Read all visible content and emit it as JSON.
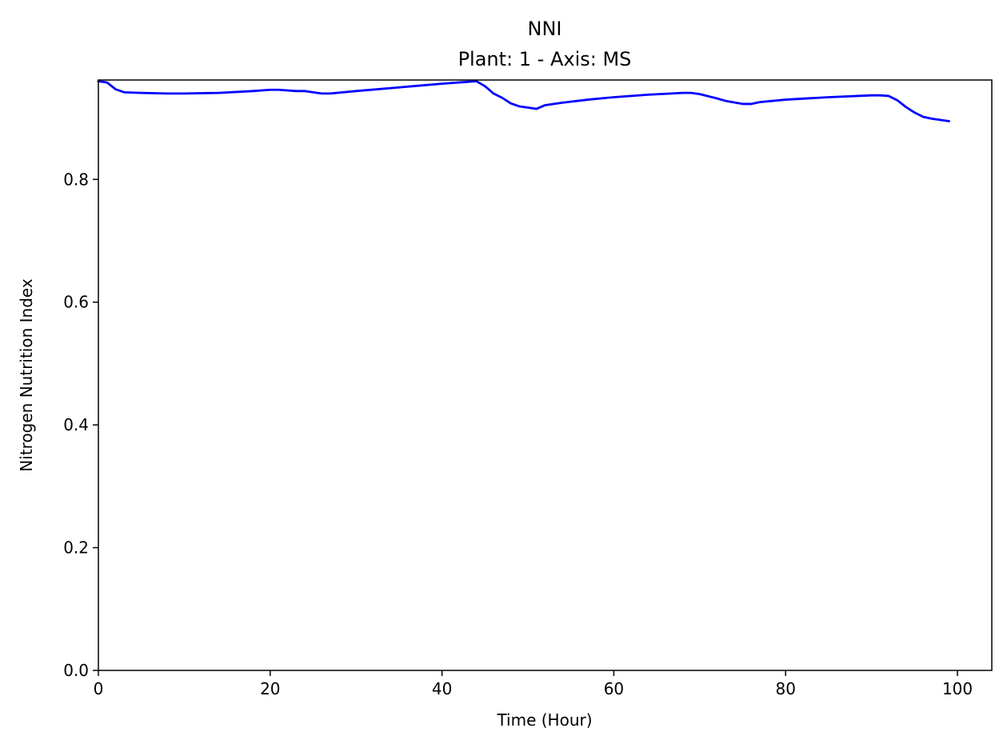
{
  "chart_data": {
    "type": "line",
    "title": "NNI",
    "subtitle": "Plant: 1 - Axis: MS",
    "xlabel": "Time (Hour)",
    "ylabel": "Nitrogen Nutrition Index",
    "xlim": [
      0,
      104
    ],
    "ylim": [
      0,
      0.962
    ],
    "xticks": [
      0,
      20,
      40,
      60,
      80,
      100
    ],
    "yticks": [
      0.0,
      0.2,
      0.4,
      0.6,
      0.8
    ],
    "xtick_labels": [
      "0",
      "20",
      "40",
      "60",
      "80",
      "100"
    ],
    "ytick_labels": [
      "0.0",
      "0.2",
      "0.4",
      "0.6",
      "0.8"
    ],
    "grid": false,
    "series": [
      {
        "color": "#0000ff",
        "x": [
          0,
          1,
          2,
          3,
          5,
          8,
          10,
          14,
          18,
          20,
          21,
          23,
          24,
          25,
          26,
          27,
          30,
          35,
          40,
          42,
          44,
          45,
          46,
          47,
          48,
          49,
          50,
          51,
          52,
          54,
          57,
          60,
          64,
          68,
          69,
          70,
          72,
          73,
          75,
          76,
          77,
          80,
          85,
          90,
          91,
          92,
          93,
          94,
          95,
          96,
          97,
          99
        ],
        "y": [
          0.96,
          0.958,
          0.947,
          0.942,
          0.941,
          0.94,
          0.94,
          0.941,
          0.944,
          0.946,
          0.946,
          0.944,
          0.944,
          0.942,
          0.94,
          0.94,
          0.944,
          0.95,
          0.956,
          0.958,
          0.96,
          0.952,
          0.94,
          0.933,
          0.924,
          0.919,
          0.917,
          0.915,
          0.921,
          0.925,
          0.93,
          0.934,
          0.938,
          0.941,
          0.941,
          0.939,
          0.932,
          0.928,
          0.923,
          0.923,
          0.926,
          0.93,
          0.934,
          0.937,
          0.937,
          0.936,
          0.929,
          0.918,
          0.909,
          0.902,
          0.899,
          0.895
        ]
      }
    ]
  }
}
